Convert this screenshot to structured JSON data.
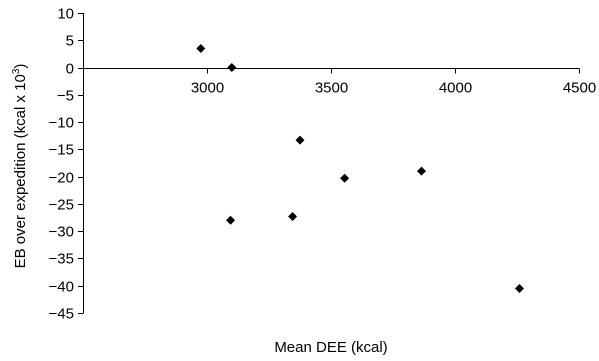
{
  "chart_data": {
    "type": "scatter",
    "title": "",
    "xlabel": "Mean DEE (kcal)",
    "ylabel": {
      "prefix": "EB over expedition (kcal x 10",
      "superscript": "3",
      "suffix": ")"
    },
    "xlim": [
      2500,
      4500
    ],
    "ylim": [
      -45,
      10
    ],
    "x_ticks": [
      3000,
      3500,
      4000,
      4500
    ],
    "x_tick_labels": [
      "3000",
      "3500",
      "4000",
      "4500"
    ],
    "y_ticks": [
      10,
      5,
      0,
      -5,
      -10,
      -15,
      -20,
      -25,
      -30,
      -35,
      -40,
      -45
    ],
    "y_tick_labels": [
      "10",
      "5",
      "0",
      "−5",
      "−10",
      "−15",
      "−20",
      "−25",
      "−30",
      "−35",
      "−40",
      "−45"
    ],
    "x_axis_crosses_y_at": 0,
    "grid": false,
    "marker": "diamond",
    "marker_color": "#000000",
    "points": [
      {
        "x": 2975,
        "y": 3.5
      },
      {
        "x": 3100,
        "y": 0
      },
      {
        "x": 3095,
        "y": -28
      },
      {
        "x": 3345,
        "y": -27.3
      },
      {
        "x": 3375,
        "y": -13.3
      },
      {
        "x": 3555,
        "y": -20.3
      },
      {
        "x": 3865,
        "y": -19
      },
      {
        "x": 4260,
        "y": -40.5
      }
    ]
  }
}
